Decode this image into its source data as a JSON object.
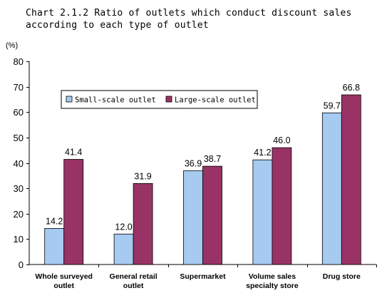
{
  "chart_data": {
    "type": "bar",
    "title_line1": "Chart 2.1.2 Ratio of outlets which conduct discount sales",
    "title_line2": "according to each type of outlet",
    "ylabel": "(%)",
    "xlabel": "",
    "ylim": [
      0,
      80
    ],
    "yticks": [
      0,
      10,
      20,
      30,
      40,
      50,
      60,
      70,
      80
    ],
    "grid": false,
    "legend_position": "top-left",
    "categories": [
      [
        "Whole surveyed",
        "outlet"
      ],
      [
        "General retail",
        "outlet"
      ],
      [
        "Supermarket"
      ],
      [
        "Volume sales",
        "specialty store"
      ],
      [
        "Drug store"
      ]
    ],
    "series": [
      {
        "name": "Small-scale outlet",
        "color": "#a6caf0",
        "values": [
          14.2,
          12.0,
          36.9,
          41.2,
          59.7
        ],
        "labels": [
          "14.2",
          "12.0",
          "36.9",
          "41.2",
          "59.7"
        ]
      },
      {
        "name": "Large-scale outlet",
        "color": "#993366",
        "values": [
          41.4,
          31.9,
          38.7,
          46.0,
          66.8
        ],
        "labels": [
          "41.4",
          "31.9",
          "38.7",
          "46.0",
          "66.8"
        ]
      }
    ]
  }
}
